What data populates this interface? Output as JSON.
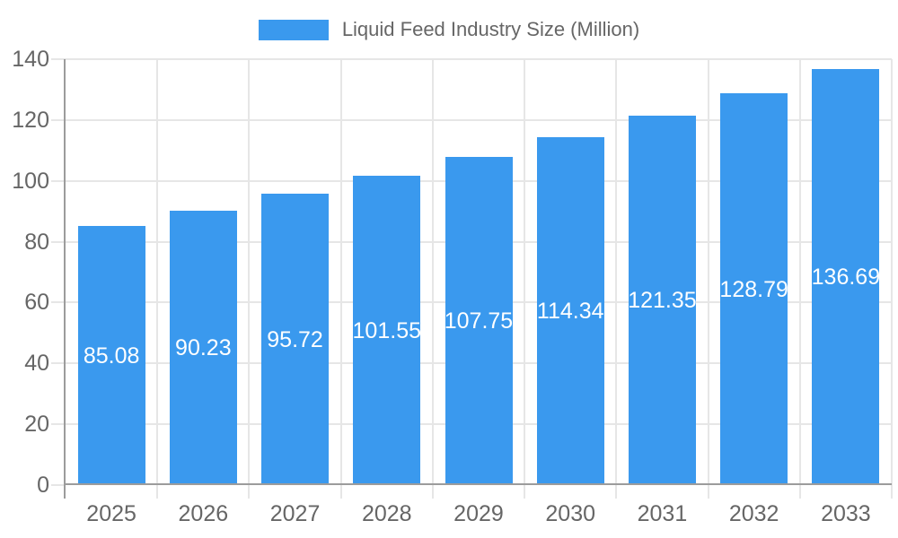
{
  "chart_data": {
    "type": "bar",
    "title": "Liquid Feed Industry Size (Million)",
    "legend": {
      "label": "Liquid Feed Industry Size (Million)",
      "position": "top"
    },
    "categories": [
      "2025",
      "2026",
      "2027",
      "2028",
      "2029",
      "2030",
      "2031",
      "2032",
      "2033"
    ],
    "series": [
      {
        "name": "Liquid Feed Industry Size (Million)",
        "values": [
          85.08,
          90.23,
          95.72,
          101.55,
          107.75,
          114.34,
          121.35,
          128.79,
          136.69
        ],
        "value_labels": [
          "85.08",
          "90.23",
          "95.72",
          "101.55",
          "107.75",
          "114.34",
          "121.35",
          "128.79",
          "136.69"
        ]
      }
    ],
    "xlabel": "",
    "ylabel": "",
    "ylim": [
      0,
      140
    ],
    "yticks": [
      0,
      20,
      40,
      60,
      80,
      100,
      120,
      140
    ],
    "ytick_labels": [
      "0",
      "20",
      "40",
      "60",
      "80",
      "100",
      "120",
      "140"
    ],
    "grid": true,
    "value_label_position": "center",
    "colors": {
      "bar": "#3A99EE",
      "grid": "#E6E6E6",
      "axis": "#9C9C9C",
      "tick_text": "#666666",
      "legend_text": "#666666",
      "value_label": "#FFFFFF",
      "background": "#FFFFFF"
    }
  }
}
